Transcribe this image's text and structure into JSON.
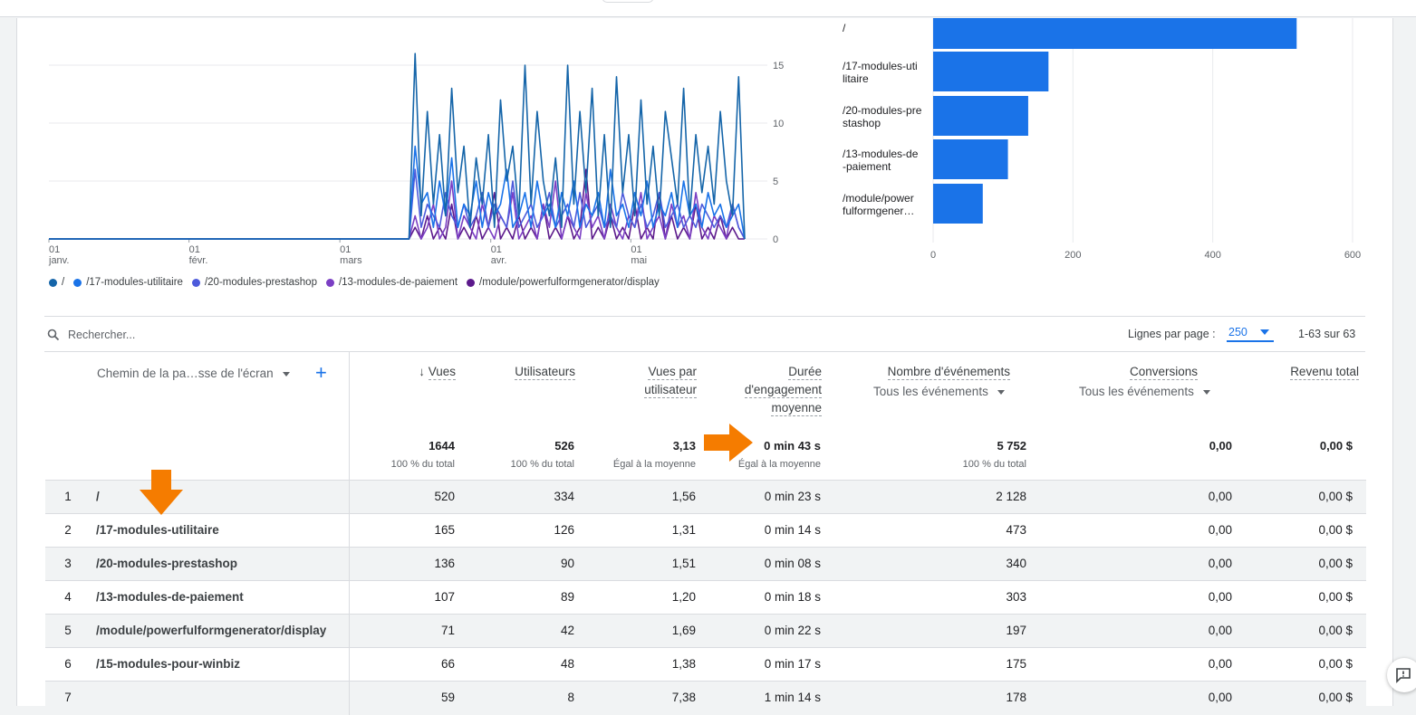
{
  "line_chart": {
    "y_ticks": [
      "15",
      "10",
      "5",
      "0"
    ],
    "x_ticks": [
      {
        "day": "01",
        "month": "janv."
      },
      {
        "day": "01",
        "month": "févr."
      },
      {
        "day": "01",
        "month": "mars"
      },
      {
        "day": "01",
        "month": "avr."
      },
      {
        "day": "01",
        "month": "mai"
      }
    ],
    "legend": [
      {
        "label": "/",
        "color": "#1565a9"
      },
      {
        "label": "/17-modules-utilitaire",
        "color": "#1a73e8"
      },
      {
        "label": "/20-modules-prestashop",
        "color": "#4d5bdb"
      },
      {
        "label": "/13-modules-de-paiement",
        "color": "#7b3fc4"
      },
      {
        "label": "/module/powerfulformgenerator/display",
        "color": "#5c1a8c"
      }
    ]
  },
  "bar_chart": {
    "labels": [
      [
        "/"
      ],
      [
        "/17-modules-uti",
        "litaire"
      ],
      [
        "/20-modules-pre",
        "stashop"
      ],
      [
        "/13-modules-de",
        "-paiement"
      ],
      [
        "/module/power",
        "fulformgener…"
      ]
    ],
    "x_ticks": [
      "0",
      "200",
      "400",
      "600"
    ]
  },
  "chart_data": [
    {
      "type": "line",
      "y_range": [
        0,
        15
      ],
      "x_range": [
        "01 janv.",
        "01 mai"
      ],
      "grid": true,
      "legend_position": "bottom-left",
      "series": [
        {
          "name": "/",
          "color": "#1565a9",
          "values": [
            0,
            0,
            0,
            0,
            0,
            0,
            0,
            0,
            0,
            0,
            0,
            0,
            0,
            0,
            0,
            0,
            0,
            0,
            0,
            0,
            0,
            0,
            0,
            0,
            0,
            0,
            0,
            0,
            0,
            0,
            0,
            0,
            0,
            0,
            0,
            0,
            0,
            0,
            0,
            0,
            0,
            0,
            0,
            0,
            0,
            0,
            0,
            0,
            0,
            0,
            0,
            0,
            0,
            0,
            0,
            0,
            0,
            0,
            0,
            0,
            16,
            2,
            11,
            3,
            9,
            2,
            13,
            4,
            8,
            1,
            7,
            3,
            9,
            1,
            12,
            5,
            8,
            2,
            15,
            3,
            11,
            5,
            2,
            7,
            1,
            15,
            3,
            11,
            4,
            13,
            2,
            9,
            1,
            14,
            4,
            9,
            2,
            12,
            3,
            8,
            2,
            11,
            7,
            3,
            13,
            2,
            9,
            4,
            8,
            3,
            11,
            5,
            2,
            14,
            0
          ]
        },
        {
          "name": "/17-modules-utilitaire",
          "color": "#1a73e8",
          "values": [
            0,
            0,
            0,
            0,
            0,
            0,
            0,
            0,
            0,
            0,
            0,
            0,
            0,
            0,
            0,
            0,
            0,
            0,
            0,
            0,
            0,
            0,
            0,
            0,
            0,
            0,
            0,
            0,
            0,
            0,
            0,
            0,
            0,
            0,
            0,
            0,
            0,
            0,
            0,
            0,
            0,
            0,
            0,
            0,
            0,
            0,
            0,
            0,
            0,
            0,
            0,
            0,
            0,
            0,
            0,
            0,
            0,
            0,
            0,
            0,
            8,
            3,
            4,
            1,
            5,
            2,
            7,
            1,
            3,
            2,
            5,
            1,
            4,
            2,
            3,
            6,
            1,
            2,
            4,
            1,
            5,
            2,
            3,
            1,
            4,
            2,
            5,
            1,
            3,
            2,
            4,
            1,
            6,
            2,
            3,
            1,
            4,
            2,
            5,
            1,
            3,
            2,
            4,
            1,
            5,
            2,
            3,
            1,
            4,
            2,
            3,
            1,
            2,
            3,
            0
          ]
        },
        {
          "name": "/20-modules-prestashop",
          "color": "#4d5bdb",
          "values": [
            0,
            0,
            0,
            0,
            0,
            0,
            0,
            0,
            0,
            0,
            0,
            0,
            0,
            0,
            0,
            0,
            0,
            0,
            0,
            0,
            0,
            0,
            0,
            0,
            0,
            0,
            0,
            0,
            0,
            0,
            0,
            0,
            0,
            0,
            0,
            0,
            0,
            0,
            0,
            0,
            0,
            0,
            0,
            0,
            0,
            0,
            0,
            0,
            0,
            0,
            0,
            0,
            0,
            0,
            0,
            0,
            0,
            0,
            0,
            0,
            6,
            1,
            3,
            2,
            1,
            4,
            2,
            1,
            3,
            1,
            2,
            4,
            1,
            3,
            2,
            1,
            5,
            1,
            2,
            3,
            1,
            2,
            4,
            1,
            2,
            3,
            1,
            4,
            1,
            2,
            3,
            1,
            2,
            1,
            4,
            2,
            1,
            3,
            1,
            2,
            4,
            1,
            2,
            3,
            1,
            2,
            1,
            3,
            2,
            1,
            2,
            1,
            3,
            1,
            0
          ]
        },
        {
          "name": "/13-modules-de-paiement",
          "color": "#7b3fc4",
          "values": [
            0,
            0,
            0,
            0,
            0,
            0,
            0,
            0,
            0,
            0,
            0,
            0,
            0,
            0,
            0,
            0,
            0,
            0,
            0,
            0,
            0,
            0,
            0,
            0,
            0,
            0,
            0,
            0,
            0,
            0,
            0,
            0,
            0,
            0,
            0,
            0,
            0,
            0,
            0,
            0,
            0,
            0,
            0,
            0,
            0,
            0,
            0,
            0,
            0,
            0,
            0,
            0,
            0,
            0,
            0,
            0,
            0,
            0,
            0,
            0,
            2,
            0,
            1,
            3,
            0,
            1,
            5,
            0,
            2,
            1,
            0,
            3,
            1,
            0,
            2,
            1,
            4,
            0,
            1,
            2,
            0,
            3,
            1,
            5,
            0,
            2,
            1,
            0,
            4,
            1,
            2,
            0,
            3,
            1,
            0,
            2,
            1,
            4,
            0,
            1,
            2,
            0,
            3,
            1,
            2,
            0,
            4,
            1,
            0,
            2,
            1,
            0,
            3,
            1,
            0
          ]
        },
        {
          "name": "/module/powerfulformgenerator/display",
          "color": "#5c1a8c",
          "values": [
            0,
            0,
            0,
            0,
            0,
            0,
            0,
            0,
            0,
            0,
            0,
            0,
            0,
            0,
            0,
            0,
            0,
            0,
            0,
            0,
            0,
            0,
            0,
            0,
            0,
            0,
            0,
            0,
            0,
            0,
            0,
            0,
            0,
            0,
            0,
            0,
            0,
            0,
            0,
            0,
            0,
            0,
            0,
            0,
            0,
            0,
            0,
            0,
            0,
            0,
            0,
            0,
            0,
            0,
            0,
            0,
            0,
            0,
            0,
            0,
            1,
            0,
            2,
            0,
            1,
            0,
            3,
            0,
            1,
            0,
            2,
            0,
            1,
            4,
            0,
            1,
            0,
            2,
            0,
            1,
            0,
            3,
            0,
            1,
            0,
            2,
            0,
            1,
            6,
            0,
            1,
            0,
            2,
            0,
            1,
            0,
            3,
            0,
            1,
            0,
            4,
            0,
            2,
            0,
            1,
            0,
            3,
            0,
            1,
            0,
            2,
            0,
            1,
            0,
            0
          ]
        }
      ]
    },
    {
      "type": "bar",
      "orientation": "horizontal",
      "categories": [
        "/",
        "/17-modules-utilitaire",
        "/20-modules-prestashop",
        "/13-modules-de-paiement",
        "/module/powerfulformgenerator/display"
      ],
      "values": [
        520,
        165,
        136,
        107,
        71
      ],
      "xlim": [
        0,
        600
      ],
      "color": "#1a73e8",
      "grid": true
    }
  ],
  "search": {
    "placeholder": "Rechercher..."
  },
  "pagination": {
    "rows_label": "Lignes par page :",
    "rows_value": "250",
    "range": "1-63 sur 63"
  },
  "table": {
    "dimension_header": "Chemin de la pa…sse de l'écran",
    "columns": {
      "views": "Vues",
      "users": "Utilisateurs",
      "views_per_user_1": "Vues par",
      "views_per_user_2": "utilisateur",
      "engagement_1": "Durée",
      "engagement_2": "d'engagement",
      "engagement_3": "moyenne",
      "events": "Nombre d'événements",
      "events_filter": "Tous les événements",
      "conversions": "Conversions",
      "conversions_filter": "Tous les événements",
      "revenue": "Revenu total"
    },
    "totals": {
      "views": "1644",
      "views_sub": "100 % du total",
      "users": "526",
      "users_sub": "100 % du total",
      "vpu": "3,13",
      "vpu_sub": "Égal à la moyenne",
      "engagement": "0 min 43 s",
      "engagement_sub": "Égal à la moyenne",
      "events": "5 752",
      "events_sub": "100 % du total",
      "conversions": "0,00",
      "revenue": "0,00 $"
    },
    "rows": [
      {
        "rank": "1",
        "path": "/",
        "views": "520",
        "users": "334",
        "vpu": "1,56",
        "engagement": "0 min 23 s",
        "events": "2 128",
        "conversions": "0,00",
        "revenue": "0,00 $"
      },
      {
        "rank": "2",
        "path": "/17-modules-utilitaire",
        "views": "165",
        "users": "126",
        "vpu": "1,31",
        "engagement": "0 min 14 s",
        "events": "473",
        "conversions": "0,00",
        "revenue": "0,00 $"
      },
      {
        "rank": "3",
        "path": "/20-modules-prestashop",
        "views": "136",
        "users": "90",
        "vpu": "1,51",
        "engagement": "0 min 08 s",
        "events": "340",
        "conversions": "0,00",
        "revenue": "0,00 $"
      },
      {
        "rank": "4",
        "path": "/13-modules-de-paiement",
        "views": "107",
        "users": "89",
        "vpu": "1,20",
        "engagement": "0 min 18 s",
        "events": "303",
        "conversions": "0,00",
        "revenue": "0,00 $"
      },
      {
        "rank": "5",
        "path": "/module/powerfulformgenerator/display",
        "views": "71",
        "users": "42",
        "vpu": "1,69",
        "engagement": "0 min 22 s",
        "events": "197",
        "conversions": "0,00",
        "revenue": "0,00 $"
      },
      {
        "rank": "6",
        "path": "/15-modules-pour-winbiz",
        "views": "66",
        "users": "48",
        "vpu": "1,38",
        "engagement": "0 min 17 s",
        "events": "175",
        "conversions": "0,00",
        "revenue": "0,00 $"
      },
      {
        "rank": "7",
        "path": "",
        "views": "59",
        "users": "8",
        "vpu": "7,38",
        "engagement": "1 min 14 s",
        "events": "178",
        "conversions": "0,00",
        "revenue": "0,00 $"
      }
    ]
  },
  "annotations": {
    "arrow_color": "#f57c00"
  }
}
